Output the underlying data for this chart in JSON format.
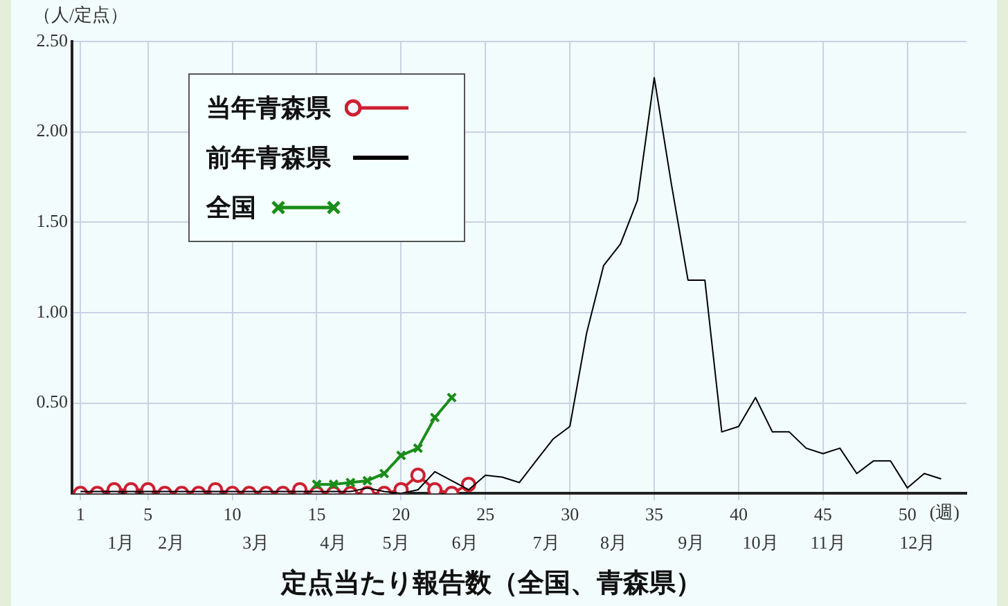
{
  "chart_data": {
    "type": "line",
    "title": "定点当たり報告数（全国、青森県）",
    "ylabel": "（人/定点）",
    "xlabel": "(週)",
    "x": [
      1,
      2,
      3,
      4,
      5,
      6,
      7,
      8,
      9,
      10,
      11,
      12,
      13,
      14,
      15,
      16,
      17,
      18,
      19,
      20,
      21,
      22,
      23,
      24,
      25,
      26,
      27,
      28,
      29,
      30,
      31,
      32,
      33,
      34,
      35,
      36,
      37,
      38,
      39,
      40,
      41,
      42,
      43,
      44,
      45,
      46,
      47,
      48,
      49,
      50,
      51,
      52
    ],
    "series": [
      {
        "name": "当年青森県",
        "color": "#cc2030",
        "marker": "circle",
        "x": [
          1,
          2,
          3,
          4,
          5,
          6,
          7,
          8,
          9,
          10,
          11,
          12,
          13,
          14,
          15,
          16,
          17,
          18,
          19,
          20,
          21,
          22,
          23,
          24
        ],
        "values": [
          0,
          0,
          0.02,
          0.02,
          0.02,
          0,
          0,
          0,
          0.02,
          0,
          0,
          0,
          0,
          0.02,
          0,
          0,
          0,
          0,
          0,
          0.02,
          0.1,
          0.02,
          0,
          0.05
        ]
      },
      {
        "name": "前年青森県",
        "color": "#000000",
        "marker": "none",
        "values": [
          0.01,
          0.01,
          0.01,
          0.01,
          0.01,
          0.01,
          0.01,
          0.01,
          0.01,
          0.01,
          0.01,
          0.01,
          0.01,
          0.01,
          0.01,
          0.01,
          0.01,
          0.03,
          0.01,
          0,
          0.02,
          0.12,
          0.07,
          0.02,
          0.1,
          0.09,
          0.06,
          0.18,
          0.3,
          0.37,
          0.89,
          1.26,
          1.38,
          1.62,
          2.3,
          1.72,
          1.18,
          1.18,
          0.34,
          0.37,
          0.53,
          0.34,
          0.34,
          0.25,
          0.22,
          0.25,
          0.11,
          0.18,
          0.18,
          0.03,
          0.11,
          0.08
        ]
      },
      {
        "name": "全国",
        "color": "#1a8c1a",
        "marker": "cross",
        "x": [
          15,
          16,
          17,
          18,
          19,
          20,
          21,
          22,
          23
        ],
        "values": [
          0.05,
          0.05,
          0.06,
          0.07,
          0.11,
          0.21,
          0.25,
          0.42,
          0.53
        ]
      }
    ],
    "xlim": [
      0.5,
      53.5
    ],
    "xticks": [
      1,
      5,
      10,
      15,
      20,
      25,
      30,
      35,
      40,
      45,
      50
    ],
    "ylim": [
      0,
      2.5
    ],
    "yticks": [
      {
        "value": 0,
        "label": null
      },
      {
        "value": 0.5,
        "label": "0.50"
      },
      {
        "value": 1,
        "label": "1.00"
      },
      {
        "value": 1.5,
        "label": "1.50"
      },
      {
        "value": 2,
        "label": "2.00"
      },
      {
        "value": 2.5,
        "label": "2.50"
      }
    ],
    "grid": true,
    "legend": "top left",
    "line_style": "solid",
    "annotations": [
      "1月",
      "2月",
      "3月",
      "4月",
      "5月",
      "6月",
      "7月",
      "8月",
      "9月",
      "10月",
      "11月",
      "12月"
    ]
  }
}
